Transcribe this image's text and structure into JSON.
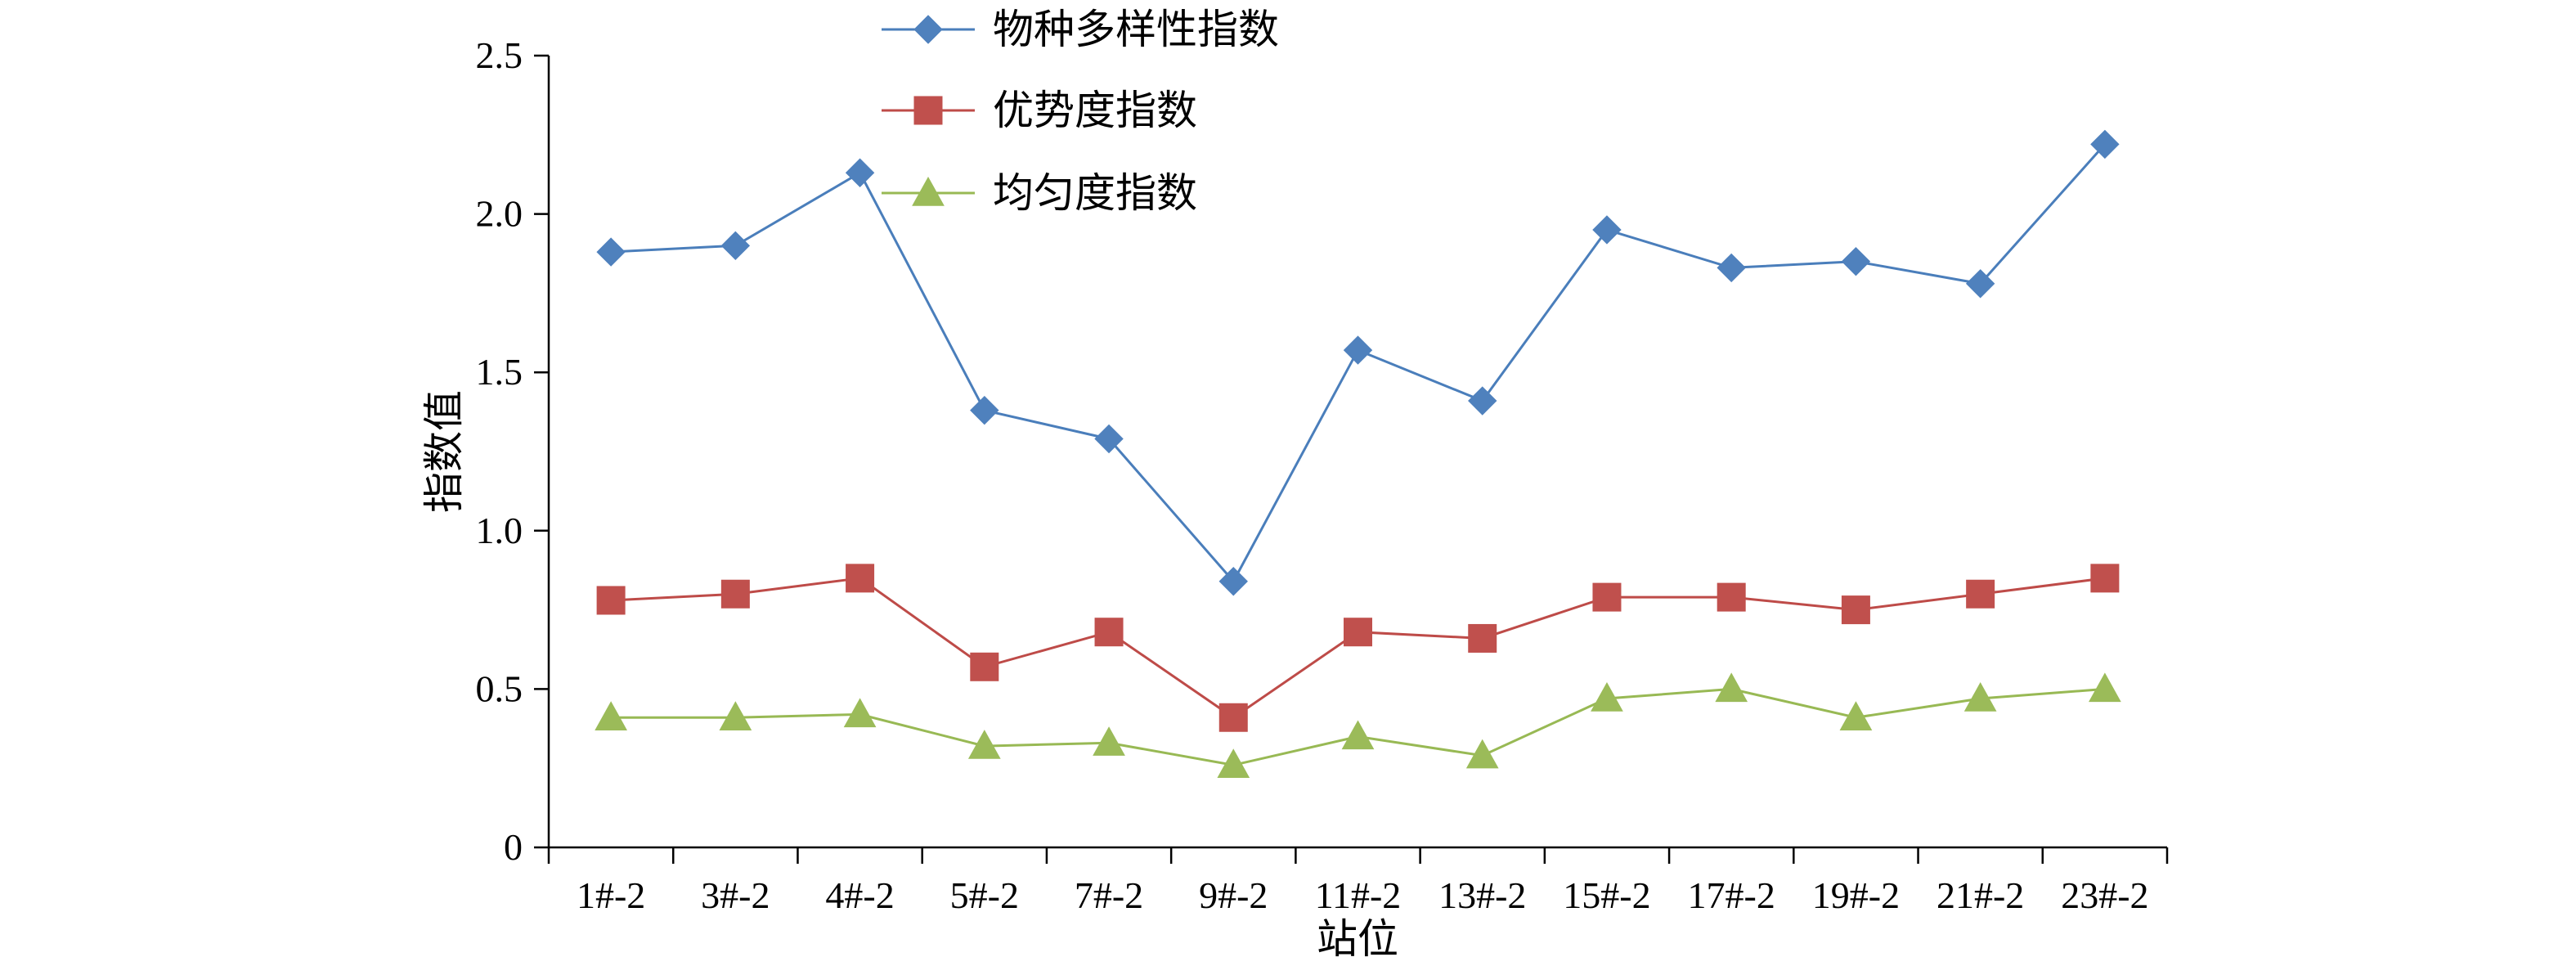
{
  "chart_data": {
    "type": "line",
    "xlabel": "站位",
    "ylabel": "指数值",
    "ylim": [
      0,
      2.5
    ],
    "yticks": [
      "0",
      "0.5",
      "1.0",
      "1.5",
      "2.0",
      "2.5"
    ],
    "ytick_values": [
      0,
      0.5,
      1.0,
      1.5,
      2.0,
      2.5
    ],
    "categories": [
      "1#-2",
      "3#-2",
      "4#-2",
      "5#-2",
      "7#-2",
      "9#-2",
      "11#-2",
      "13#-2",
      "15#-2",
      "17#-2",
      "19#-2",
      "21#-2",
      "23#-2"
    ],
    "grid": false,
    "legend_position": "top-center",
    "series": [
      {
        "name": "物种多样性指数",
        "marker": "diamond",
        "color": "#4a7ebb",
        "marker_color": "#4f81bd",
        "values": [
          1.88,
          1.9,
          2.13,
          1.38,
          1.29,
          0.84,
          1.57,
          1.41,
          1.95,
          1.83,
          1.85,
          1.78,
          2.22
        ]
      },
      {
        "name": "优势度指数",
        "marker": "square",
        "color": "#be4b48",
        "marker_color": "#c0504d",
        "values": [
          0.78,
          0.8,
          0.85,
          0.57,
          0.68,
          0.41,
          0.68,
          0.66,
          0.79,
          0.79,
          0.75,
          0.8,
          0.85
        ]
      },
      {
        "name": "均匀度指数",
        "marker": "triangle",
        "color": "#98b954",
        "marker_color": "#9bbb59",
        "values": [
          0.41,
          0.41,
          0.42,
          0.32,
          0.33,
          0.26,
          0.35,
          0.29,
          0.47,
          0.5,
          0.41,
          0.47,
          0.5
        ]
      }
    ]
  }
}
